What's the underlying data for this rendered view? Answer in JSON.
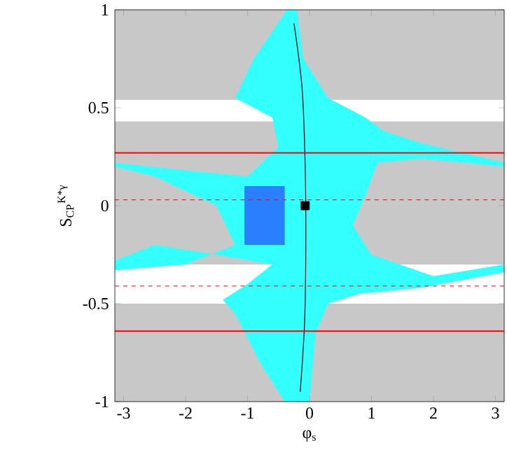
{
  "chart_data": {
    "type": "scatter",
    "xlabel": "φ$_{s}$",
    "ylabel": "S$_{CP}$$^{K*γ}$",
    "xlim": [
      -3.1416,
      3.1416
    ],
    "ylim": [
      -1,
      1
    ],
    "xticks": [
      -3,
      -2,
      -1,
      0,
      1,
      2,
      3
    ],
    "yticks": [
      -1,
      -0.5,
      0,
      0.5,
      1
    ],
    "bands": [
      {
        "axis": "y",
        "from": 0.54,
        "to": 1,
        "color": "#c8c8c8"
      },
      {
        "axis": "y",
        "from": -0.3,
        "to": 0.43,
        "color": "#c8c8c8"
      },
      {
        "axis": "y",
        "from": -1,
        "to": -0.5,
        "color": "#c8c8c8"
      }
    ],
    "series": [
      {
        "type": "area",
        "color": "#33ffff",
        "x": [
          -0.36,
          -0.2,
          -0.1,
          0.3,
          0.9,
          1.2,
          1.8,
          3.14,
          3.14,
          1.8,
          1.1,
          0.9,
          0.7,
          1.0,
          2.0,
          3.14,
          3.14,
          1.8,
          0.8,
          0.3,
          0.1,
          0.0,
          -0.4,
          -0.8,
          -1.2,
          -1.4,
          -1.0,
          -0.6,
          -1.5,
          -2.5,
          -3.14,
          -3.14,
          -2.0,
          -1.2,
          -1.5,
          -2.5,
          -3.14,
          -3.14,
          -2.0,
          -1.0,
          -0.5,
          -0.6,
          -1.2,
          -0.9
        ],
        "values": [
          1,
          1,
          0.75,
          0.55,
          0.45,
          0.38,
          0.32,
          0.22,
          0.2,
          0.24,
          0.22,
          0.05,
          -0.1,
          -0.25,
          -0.36,
          -0.3,
          -0.34,
          -0.42,
          -0.45,
          -0.5,
          -0.65,
          -1,
          -1,
          -0.8,
          -0.55,
          -0.48,
          -0.4,
          -0.3,
          -0.25,
          -0.2,
          -0.28,
          -0.33,
          -0.3,
          -0.2,
          0,
          0.15,
          0.2,
          0.22,
          0.18,
          0.15,
          0.3,
          0.45,
          0.55,
          0.75
        ]
      },
      {
        "type": "area",
        "color": "#2a7fff",
        "x": [
          -1.05,
          -0.4,
          -0.4,
          -1.05
        ],
        "values": [
          0.1,
          0.1,
          -0.2,
          -0.2
        ]
      },
      {
        "type": "line",
        "color": "#000000",
        "x": [
          -0.25,
          -0.12,
          -0.07,
          -0.06,
          -0.08,
          -0.15
        ],
        "values": [
          0.93,
          0.6,
          0.2,
          -0.2,
          -0.6,
          -0.95
        ]
      },
      {
        "color": "#000000",
        "marker": "square",
        "x": [
          -0.07
        ],
        "values": [
          0
        ]
      }
    ],
    "ref_lines": [
      {
        "axis": "y",
        "value": 0.27,
        "color": "#ff0000",
        "line_style": "solid"
      },
      {
        "axis": "y",
        "value": -0.64,
        "color": "#ff0000",
        "line_style": "solid"
      },
      {
        "axis": "y",
        "value": 0.03,
        "color": "#ff0000",
        "line_style": "dashed"
      },
      {
        "axis": "y",
        "value": -0.41,
        "color": "#ff0000",
        "line_style": "dashed"
      }
    ]
  }
}
